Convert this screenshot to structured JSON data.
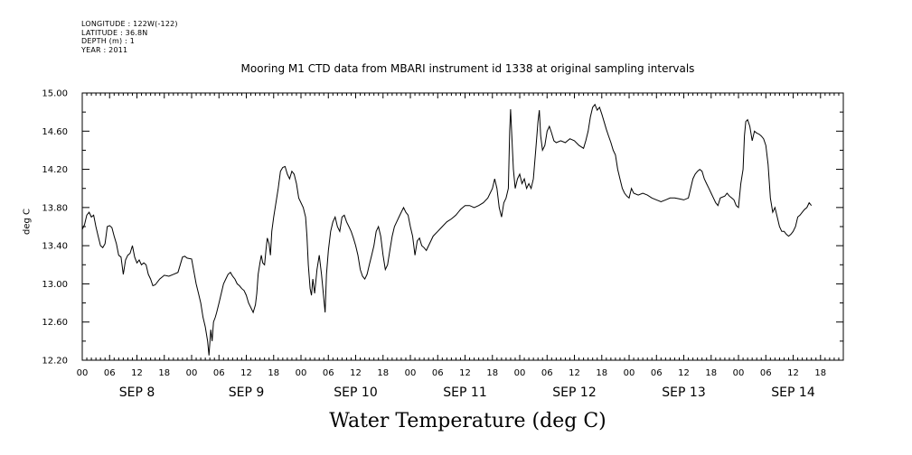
{
  "header": {
    "meta_lines": [
      "LONGITUDE : 122W(-122)",
      "LATITUDE : 36.8N",
      "DEPTH (m) : 1",
      "YEAR : 2011"
    ],
    "title": "Mooring M1 CTD data from MBARI instrument id 1338 at original sampling intervals",
    "bottom_title": "Water Temperature (deg C)"
  },
  "chart_data": {
    "type": "line",
    "title": "Mooring M1 CTD data from MBARI instrument id 1338 at original sampling intervals",
    "xlabel": "",
    "ylabel": "deg C",
    "ylim": [
      12.2,
      15.0
    ],
    "yticks": [
      "12.20",
      "12.60",
      "13.00",
      "13.40",
      "13.80",
      "14.20",
      "14.60",
      "15.00"
    ],
    "x_unit": "hours since SEP 8 00:00",
    "xlim": [
      0,
      167
    ],
    "hour_ticks": [
      "00",
      "06",
      "12",
      "18"
    ],
    "day_labels": [
      "SEP  8",
      "SEP  9",
      "SEP 10",
      "SEP 11",
      "SEP 12",
      "SEP 13",
      "SEP 14"
    ],
    "grid": false,
    "series": [
      {
        "name": "",
        "points": [
          [
            0,
            13.57
          ],
          [
            0.5,
            13.62
          ],
          [
            1,
            13.72
          ],
          [
            1.5,
            13.75
          ],
          [
            2,
            13.7
          ],
          [
            2.5,
            13.72
          ],
          [
            3,
            13.6
          ],
          [
            3.5,
            13.5
          ],
          [
            4,
            13.4
          ],
          [
            4.5,
            13.38
          ],
          [
            5,
            13.42
          ],
          [
            5.5,
            13.6
          ],
          [
            6,
            13.61
          ],
          [
            6.5,
            13.59
          ],
          [
            7,
            13.5
          ],
          [
            7.5,
            13.42
          ],
          [
            8,
            13.3
          ],
          [
            8.5,
            13.28
          ],
          [
            9,
            13.1
          ],
          [
            9.5,
            13.25
          ],
          [
            10,
            13.3
          ],
          [
            10.5,
            13.32
          ],
          [
            11,
            13.4
          ],
          [
            11.5,
            13.28
          ],
          [
            12,
            13.22
          ],
          [
            12.5,
            13.25
          ],
          [
            13,
            13.2
          ],
          [
            13.5,
            13.22
          ],
          [
            14,
            13.2
          ],
          [
            14.5,
            13.1
          ],
          [
            15,
            13.05
          ],
          [
            15.5,
            12.98
          ],
          [
            16,
            12.99
          ],
          [
            17,
            13.05
          ],
          [
            18,
            13.09
          ],
          [
            19,
            13.08
          ],
          [
            20,
            13.1
          ],
          [
            21,
            13.12
          ],
          [
            21.5,
            13.2
          ],
          [
            22,
            13.28
          ],
          [
            22.5,
            13.29
          ],
          [
            23,
            13.27
          ],
          [
            24,
            13.26
          ],
          [
            25,
            13.0
          ],
          [
            25.5,
            12.9
          ],
          [
            26,
            12.8
          ],
          [
            26.5,
            12.65
          ],
          [
            27,
            12.55
          ],
          [
            27.5,
            12.4
          ],
          [
            27.8,
            12.25
          ],
          [
            28.2,
            12.52
          ],
          [
            28.5,
            12.4
          ],
          [
            28.8,
            12.6
          ],
          [
            29.2,
            12.65
          ],
          [
            29.5,
            12.7
          ],
          [
            30,
            12.8
          ],
          [
            30.5,
            12.9
          ],
          [
            31,
            13.0
          ],
          [
            31.5,
            13.05
          ],
          [
            32,
            13.1
          ],
          [
            32.5,
            13.12
          ],
          [
            33,
            13.08
          ],
          [
            33.5,
            13.05
          ],
          [
            34,
            13.0
          ],
          [
            34.5,
            12.98
          ],
          [
            35,
            12.95
          ],
          [
            35.5,
            12.93
          ],
          [
            36,
            12.88
          ],
          [
            36.5,
            12.8
          ],
          [
            37,
            12.75
          ],
          [
            37.5,
            12.7
          ],
          [
            38,
            12.78
          ],
          [
            38.3,
            12.9
          ],
          [
            38.6,
            13.1
          ],
          [
            39,
            13.22
          ],
          [
            39.3,
            13.3
          ],
          [
            39.6,
            13.22
          ],
          [
            40,
            13.2
          ],
          [
            40.3,
            13.35
          ],
          [
            40.6,
            13.48
          ],
          [
            41,
            13.42
          ],
          [
            41.3,
            13.3
          ],
          [
            41.6,
            13.55
          ],
          [
            42,
            13.7
          ],
          [
            42.5,
            13.85
          ],
          [
            43,
            14.0
          ],
          [
            43.5,
            14.18
          ],
          [
            44,
            14.22
          ],
          [
            44.5,
            14.23
          ],
          [
            45,
            14.15
          ],
          [
            45.5,
            14.1
          ],
          [
            46,
            14.18
          ],
          [
            46.5,
            14.15
          ],
          [
            47,
            14.05
          ],
          [
            47.5,
            13.9
          ],
          [
            48,
            13.85
          ],
          [
            48.5,
            13.8
          ],
          [
            49,
            13.7
          ],
          [
            49.3,
            13.5
          ],
          [
            49.6,
            13.2
          ],
          [
            50,
            12.95
          ],
          [
            50.3,
            12.88
          ],
          [
            50.6,
            13.05
          ],
          [
            51,
            12.9
          ],
          [
            51.5,
            13.15
          ],
          [
            52,
            13.3
          ],
          [
            52.5,
            13.1
          ],
          [
            53,
            12.85
          ],
          [
            53.3,
            12.7
          ],
          [
            53.6,
            13.1
          ],
          [
            54,
            13.35
          ],
          [
            54.5,
            13.55
          ],
          [
            55,
            13.65
          ],
          [
            55.5,
            13.7
          ],
          [
            56,
            13.6
          ],
          [
            56.5,
            13.55
          ],
          [
            57,
            13.7
          ],
          [
            57.5,
            13.72
          ],
          [
            58,
            13.65
          ],
          [
            58.5,
            13.6
          ],
          [
            59,
            13.55
          ],
          [
            59.5,
            13.48
          ],
          [
            60,
            13.4
          ],
          [
            60.5,
            13.3
          ],
          [
            61,
            13.15
          ],
          [
            61.5,
            13.08
          ],
          [
            62,
            13.05
          ],
          [
            62.5,
            13.1
          ],
          [
            63,
            13.2
          ],
          [
            63.5,
            13.3
          ],
          [
            64,
            13.4
          ],
          [
            64.5,
            13.55
          ],
          [
            65,
            13.6
          ],
          [
            65.5,
            13.5
          ],
          [
            66,
            13.3
          ],
          [
            66.5,
            13.15
          ],
          [
            67,
            13.2
          ],
          [
            67.5,
            13.35
          ],
          [
            68,
            13.5
          ],
          [
            68.5,
            13.6
          ],
          [
            69,
            13.65
          ],
          [
            69.5,
            13.7
          ],
          [
            70,
            13.75
          ],
          [
            70.5,
            13.8
          ],
          [
            71,
            13.75
          ],
          [
            71.5,
            13.72
          ],
          [
            72,
            13.6
          ],
          [
            72.5,
            13.5
          ],
          [
            73,
            13.3
          ],
          [
            73.5,
            13.45
          ],
          [
            74,
            13.48
          ],
          [
            74.5,
            13.4
          ],
          [
            75,
            13.38
          ],
          [
            75.5,
            13.35
          ],
          [
            76,
            13.4
          ],
          [
            76.5,
            13.45
          ],
          [
            77,
            13.5
          ],
          [
            78,
            13.55
          ],
          [
            79,
            13.6
          ],
          [
            80,
            13.65
          ],
          [
            81,
            13.68
          ],
          [
            82,
            13.72
          ],
          [
            83,
            13.78
          ],
          [
            84,
            13.82
          ],
          [
            85,
            13.82
          ],
          [
            86,
            13.8
          ],
          [
            87,
            13.82
          ],
          [
            88,
            13.85
          ],
          [
            89,
            13.9
          ],
          [
            90,
            14.0
          ],
          [
            90.5,
            14.1
          ],
          [
            91,
            14.0
          ],
          [
            91.5,
            13.8
          ],
          [
            92,
            13.7
          ],
          [
            92.5,
            13.85
          ],
          [
            93,
            13.9
          ],
          [
            93.5,
            14.0
          ],
          [
            93.8,
            14.6
          ],
          [
            94,
            14.83
          ],
          [
            94.3,
            14.5
          ],
          [
            94.6,
            14.2
          ],
          [
            95,
            14.0
          ],
          [
            95.5,
            14.1
          ],
          [
            96,
            14.15
          ],
          [
            96.5,
            14.05
          ],
          [
            97,
            14.1
          ],
          [
            97.5,
            14.0
          ],
          [
            98,
            14.05
          ],
          [
            98.5,
            14.0
          ],
          [
            99,
            14.1
          ],
          [
            99.5,
            14.4
          ],
          [
            100,
            14.7
          ],
          [
            100.3,
            14.82
          ],
          [
            100.6,
            14.55
          ],
          [
            101,
            14.4
          ],
          [
            101.5,
            14.45
          ],
          [
            102,
            14.6
          ],
          [
            102.5,
            14.65
          ],
          [
            103,
            14.58
          ],
          [
            103.5,
            14.5
          ],
          [
            104,
            14.48
          ],
          [
            105,
            14.5
          ],
          [
            106,
            14.48
          ],
          [
            107,
            14.52
          ],
          [
            108,
            14.5
          ],
          [
            109,
            14.45
          ],
          [
            110,
            14.42
          ],
          [
            110.5,
            14.5
          ],
          [
            111,
            14.6
          ],
          [
            111.5,
            14.75
          ],
          [
            112,
            14.85
          ],
          [
            112.5,
            14.88
          ],
          [
            113,
            14.82
          ],
          [
            113.5,
            14.85
          ],
          [
            114,
            14.78
          ],
          [
            114.5,
            14.7
          ],
          [
            115,
            14.62
          ],
          [
            115.5,
            14.55
          ],
          [
            116,
            14.48
          ],
          [
            116.5,
            14.4
          ],
          [
            117,
            14.35
          ],
          [
            117.5,
            14.2
          ],
          [
            118,
            14.1
          ],
          [
            118.5,
            14.0
          ],
          [
            119,
            13.95
          ],
          [
            119.5,
            13.92
          ],
          [
            120,
            13.9
          ],
          [
            120.5,
            14.0
          ],
          [
            121,
            13.95
          ],
          [
            122,
            13.93
          ],
          [
            123,
            13.95
          ],
          [
            124,
            13.93
          ],
          [
            125,
            13.9
          ],
          [
            126,
            13.88
          ],
          [
            127,
            13.86
          ],
          [
            128,
            13.88
          ],
          [
            129,
            13.9
          ],
          [
            130,
            13.9
          ],
          [
            131,
            13.89
          ],
          [
            132,
            13.88
          ],
          [
            133,
            13.9
          ],
          [
            133.5,
            14.0
          ],
          [
            134,
            14.1
          ],
          [
            134.5,
            14.15
          ],
          [
            135,
            14.18
          ],
          [
            135.5,
            14.2
          ],
          [
            136,
            14.18
          ],
          [
            136.5,
            14.1
          ],
          [
            137,
            14.05
          ],
          [
            137.5,
            14.0
          ],
          [
            138,
            13.95
          ],
          [
            138.5,
            13.9
          ],
          [
            139,
            13.85
          ],
          [
            139.5,
            13.82
          ],
          [
            140,
            13.9
          ],
          [
            141,
            13.92
          ],
          [
            141.5,
            13.95
          ],
          [
            142,
            13.92
          ],
          [
            142.5,
            13.9
          ],
          [
            143,
            13.88
          ],
          [
            143.5,
            13.82
          ],
          [
            144,
            13.8
          ],
          [
            144.5,
            14.05
          ],
          [
            145,
            14.2
          ],
          [
            145.3,
            14.55
          ],
          [
            145.6,
            14.7
          ],
          [
            146,
            14.72
          ],
          [
            146.5,
            14.65
          ],
          [
            147,
            14.5
          ],
          [
            147.5,
            14.6
          ],
          [
            148,
            14.58
          ],
          [
            148.5,
            14.57
          ],
          [
            149,
            14.55
          ],
          [
            149.5,
            14.52
          ],
          [
            150,
            14.45
          ],
          [
            150.5,
            14.25
          ],
          [
            151,
            13.9
          ],
          [
            151.5,
            13.75
          ],
          [
            152,
            13.8
          ],
          [
            152.5,
            13.7
          ],
          [
            153,
            13.6
          ],
          [
            153.5,
            13.55
          ],
          [
            154,
            13.55
          ],
          [
            154.5,
            13.52
          ],
          [
            155,
            13.5
          ],
          [
            155.5,
            13.52
          ],
          [
            156,
            13.55
          ],
          [
            156.5,
            13.6
          ],
          [
            157,
            13.7
          ],
          [
            157.5,
            13.72
          ],
          [
            158,
            13.75
          ],
          [
            158.5,
            13.78
          ],
          [
            159,
            13.8
          ],
          [
            159.5,
            13.85
          ],
          [
            160,
            13.82
          ]
        ]
      }
    ]
  }
}
